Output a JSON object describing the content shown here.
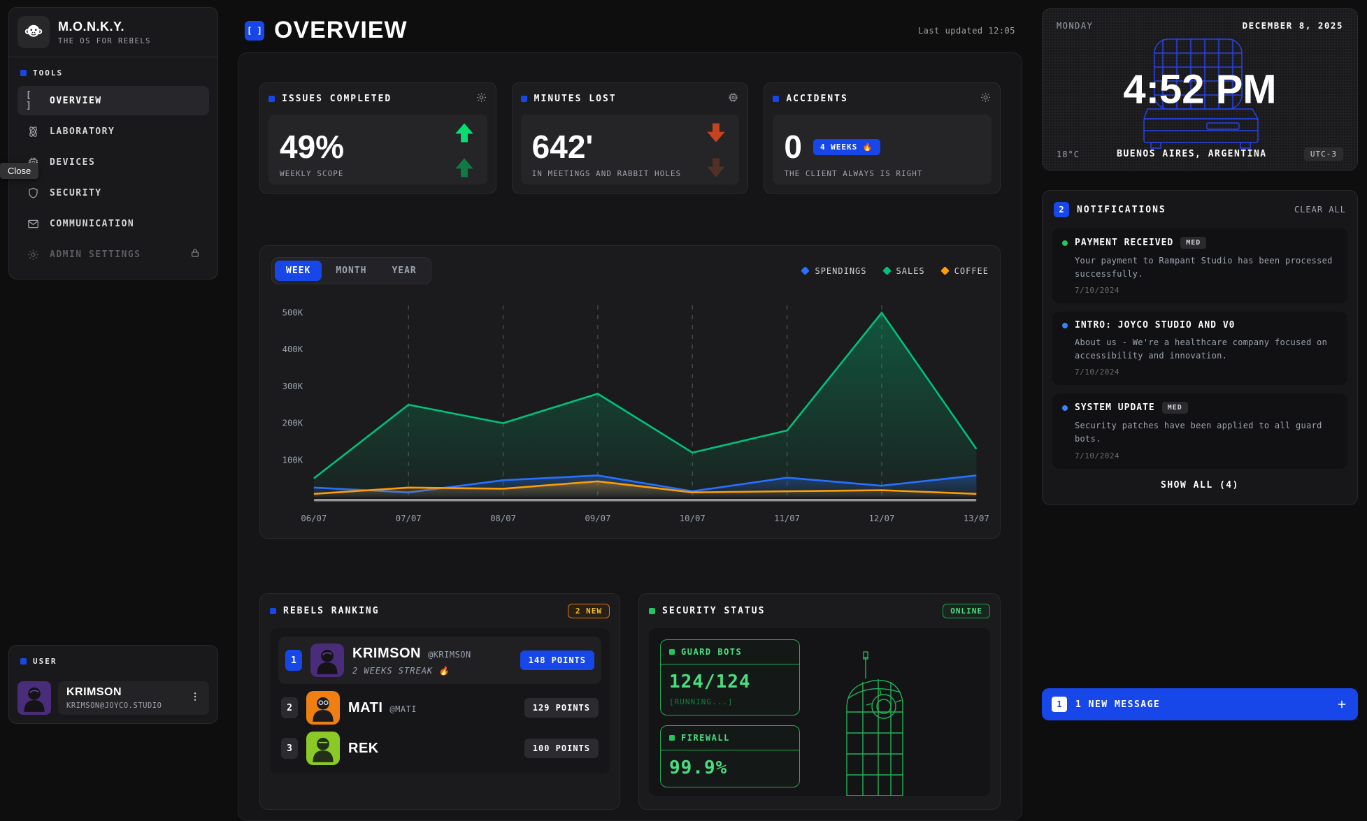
{
  "app": {
    "name": "M.O.N.K.Y.",
    "tagline": "THE OS FOR REBELS"
  },
  "sidebar": {
    "tools_label": "TOOLS",
    "tooltip_close": "Close",
    "items": [
      {
        "label": "OVERVIEW",
        "icon": "brackets-icon",
        "glyph": "[ ]",
        "active": true
      },
      {
        "label": "LABORATORY",
        "icon": "atom-icon"
      },
      {
        "label": "DEVICES",
        "icon": "chip-icon"
      },
      {
        "label": "SECURITY",
        "icon": "shield-icon"
      },
      {
        "label": "COMMUNICATION",
        "icon": "mail-icon"
      },
      {
        "label": "ADMIN SETTINGS",
        "icon": "gear-icon",
        "locked": true,
        "disabled": true
      }
    ],
    "user_label": "USER",
    "user": {
      "name": "KRIMSON",
      "email": "KRIMSON@JOYCO.STUDIO"
    }
  },
  "header": {
    "icon_glyph": "[ ]",
    "title": "OVERVIEW",
    "last_updated": "Last updated 12:05"
  },
  "stats": [
    {
      "title": "ISSUES COMPLETED",
      "icon": "gear-icon",
      "value": "49%",
      "caption": "WEEKLY SCOPE",
      "trend": "up"
    },
    {
      "title": "MINUTES LOST",
      "icon": "chip-icon",
      "value": "642'",
      "caption": "IN MEETINGS AND RABBIT HOLES",
      "trend": "down"
    },
    {
      "title": "ACCIDENTS",
      "icon": "sun-icon",
      "value": "0",
      "badge": "4 WEEKS 🔥",
      "caption": "THE CLIENT ALWAYS IS RIGHT",
      "trend": "none"
    }
  ],
  "chart": {
    "tabs": [
      "WEEK",
      "MONTH",
      "YEAR"
    ],
    "active_tab": "WEEK",
    "legend": [
      {
        "label": "SPENDINGS",
        "color": "#2970ff"
      },
      {
        "label": "SALES",
        "color": "#00c27a"
      },
      {
        "label": "COFFEE",
        "color": "#ff9d00"
      }
    ]
  },
  "chart_data": {
    "type": "area",
    "title": "",
    "x": [
      "06/07",
      "07/07",
      "08/07",
      "09/07",
      "10/07",
      "11/07",
      "12/07",
      "13/07"
    ],
    "series": [
      {
        "name": "SALES",
        "color": "#00c27a",
        "values": [
          50000,
          250000,
          200000,
          280000,
          120000,
          180000,
          500000,
          130000
        ]
      },
      {
        "name": "SPENDINGS",
        "color": "#2970ff",
        "values": [
          25000,
          12000,
          45000,
          58000,
          15000,
          52000,
          30000,
          58000
        ]
      },
      {
        "name": "COFFEE",
        "color": "#ff9d00",
        "values": [
          8000,
          25000,
          22000,
          42000,
          12000,
          15000,
          18000,
          8000
        ]
      }
    ],
    "yticks": [
      "100K",
      "200K",
      "300K",
      "400K",
      "500K"
    ],
    "ylim": [
      0,
      520000
    ],
    "grid": "vertical-dashed",
    "legend_position": "top-right"
  },
  "ranking": {
    "title": "REBELS RANKING",
    "badge": "2 NEW",
    "rows": [
      {
        "rank": "1",
        "name": "KRIMSON",
        "handle": "@KRIMSON",
        "streak": "2 WEEKS STREAK 🔥",
        "points": "148 POINTS",
        "avatar_color": "#4a2d7a"
      },
      {
        "rank": "2",
        "name": "MATI",
        "handle": "@MATI",
        "points": "129 POINTS",
        "avatar_color": "#f07f12"
      },
      {
        "rank": "3",
        "name": "REK",
        "handle": "",
        "points": "100 POINTS",
        "avatar_color": "#8ac926"
      }
    ]
  },
  "security": {
    "title": "SECURITY STATUS",
    "status": "ONLINE",
    "guard_bots": {
      "label": "GUARD BOTS",
      "value": "124/124",
      "state": "[RUNNING...]"
    },
    "firewall": {
      "label": "FIREWALL",
      "value": "99.9%"
    }
  },
  "clock": {
    "day": "MONDAY",
    "date": "DECEMBER 8, 2025",
    "time": "4:52 PM",
    "temp": "18°C",
    "location": "BUENOS AIRES, ARGENTINA",
    "utc": "UTC-3"
  },
  "notifications": {
    "count": "2",
    "title": "NOTIFICATIONS",
    "clear_label": "CLEAR ALL",
    "show_all_label": "SHOW ALL (4)",
    "items": [
      {
        "dot": "#22c55e",
        "title": "PAYMENT RECEIVED",
        "badge": "MED",
        "body": "Your payment to Rampant Studio has been processed successfully.",
        "date": "7/10/2024"
      },
      {
        "dot": "#3b82f6",
        "title": "INTRO: JOYCO STUDIO AND V0",
        "body": "About us - We're a healthcare company focused on accessibility and innovation.",
        "date": "7/10/2024"
      },
      {
        "dot": "#3b82f6",
        "title": "SYSTEM UPDATE",
        "badge": "MED",
        "body": "Security patches have been applied to all guard bots.",
        "date": "7/10/2024"
      }
    ]
  },
  "message_bar": {
    "count": "1",
    "text": "1 NEW MESSAGE"
  }
}
